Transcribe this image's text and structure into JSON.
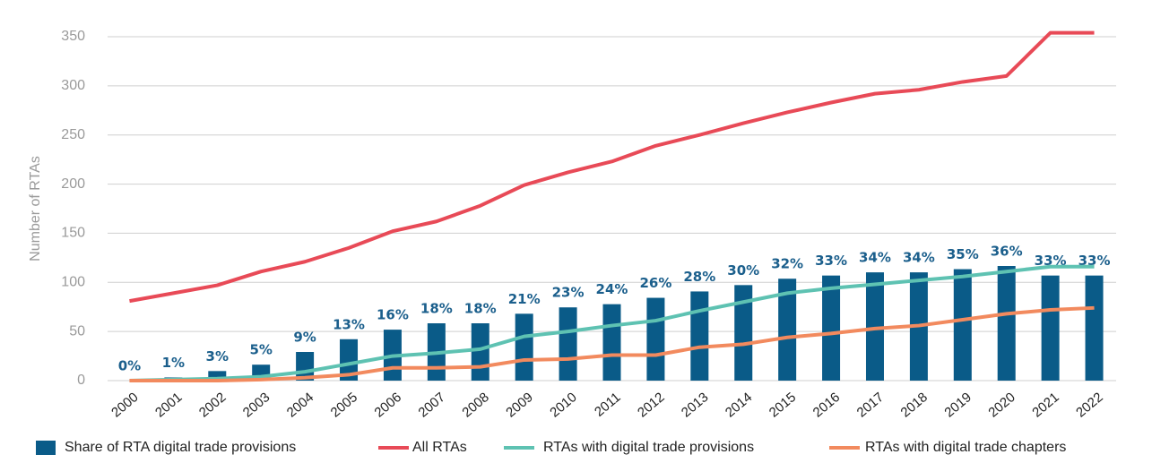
{
  "chart_data": {
    "type": "bar",
    "y_label": "Number of RTAs",
    "categories": [
      "2000",
      "2001",
      "2002",
      "2003",
      "2004",
      "2005",
      "2006",
      "2007",
      "2008",
      "2009",
      "2010",
      "2011",
      "2012",
      "2013",
      "2014",
      "2015",
      "2016",
      "2017",
      "2018",
      "2019",
      "2020",
      "2021",
      "2022"
    ],
    "ylim": [
      0,
      350
    ],
    "yticks": [
      0,
      50,
      100,
      150,
      200,
      250,
      300,
      350
    ],
    "y2lim": [
      0,
      108
    ],
    "grid": true,
    "legend": "bottom",
    "series": [
      {
        "name": "Share of RTA digital trade provisions",
        "type": "bar",
        "axis": "y2",
        "color": "#0a5b88",
        "values": [
          0,
          1,
          3,
          5,
          9,
          13,
          16,
          18,
          18,
          21,
          23,
          24,
          26,
          28,
          30,
          32,
          33,
          34,
          34,
          35,
          36,
          33,
          33
        ],
        "value_labels": [
          "0%",
          "1%",
          "3%",
          "5%",
          "9%",
          "13%",
          "16%",
          "18%",
          "18%",
          "21%",
          "23%",
          "24%",
          "26%",
          "28%",
          "30%",
          "32%",
          "33%",
          "34%",
          "34%",
          "35%",
          "36%",
          "33%",
          "33%"
        ]
      },
      {
        "name": "All RTAs",
        "type": "line",
        "color": "#e84a57",
        "values": [
          81,
          89,
          97,
          111,
          121,
          135,
          152,
          162,
          178,
          199,
          212,
          223,
          239,
          250,
          262,
          273,
          283,
          292,
          296,
          304,
          310,
          354,
          354
        ]
      },
      {
        "name": "RTAs with digital trade provisions",
        "type": "line",
        "color": "#5ec2b2",
        "values": [
          0,
          1,
          2,
          4,
          9,
          17,
          25,
          28,
          32,
          45,
          50,
          56,
          61,
          71,
          80,
          89,
          94,
          98,
          102,
          106,
          111,
          116,
          116
        ]
      },
      {
        "name": "RTAs with digital trade chapters",
        "type": "line",
        "color": "#f28a5e",
        "values": [
          0,
          0,
          0,
          1,
          3,
          6,
          13,
          13,
          14,
          21,
          22,
          26,
          26,
          34,
          37,
          44,
          48,
          53,
          56,
          62,
          68,
          72,
          74
        ]
      }
    ]
  }
}
